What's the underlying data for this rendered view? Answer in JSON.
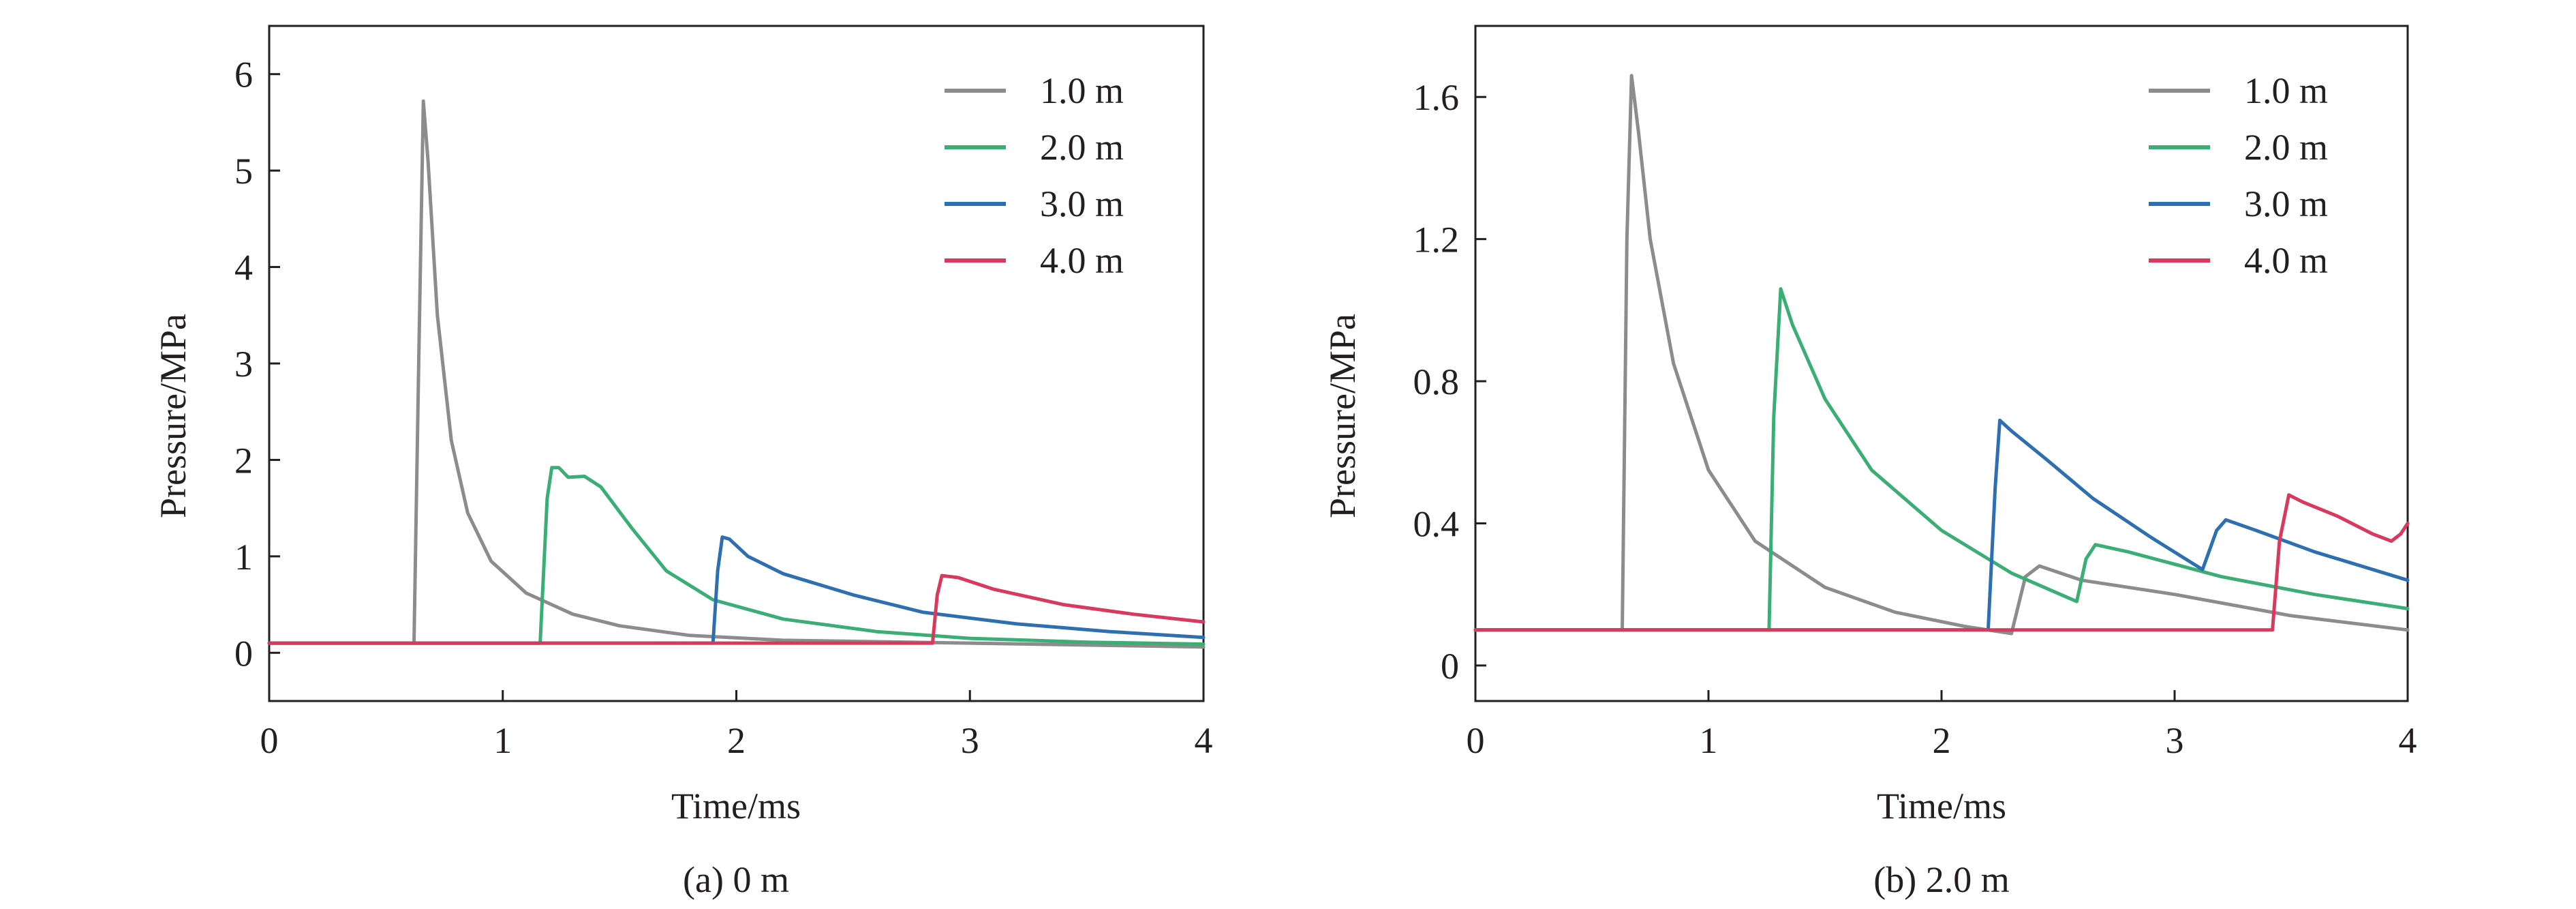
{
  "chart_data": [
    {
      "type": "line",
      "caption": "(a) 0 m",
      "xlabel": "Time/ms",
      "ylabel": "Pressure/MPa",
      "xlim": [
        0,
        4
      ],
      "ylim": [
        -0.5,
        6.5
      ],
      "xticks": [
        0,
        1,
        2,
        3,
        4
      ],
      "yticks": [
        0,
        1,
        2,
        3,
        4,
        5,
        6
      ],
      "ytick_labels": [
        "0",
        "1",
        "2",
        "3",
        "4",
        "5",
        "6"
      ],
      "legend_position": "top-right",
      "series": [
        {
          "name": "1.0 m",
          "color": "#8c8b8d",
          "points": [
            [
              0,
              0.1
            ],
            [
              0.62,
              0.1
            ],
            [
              0.64,
              3.0
            ],
            [
              0.66,
              5.72
            ],
            [
              0.68,
              5.1
            ],
            [
              0.72,
              3.5
            ],
            [
              0.78,
              2.2
            ],
            [
              0.85,
              1.45
            ],
            [
              0.95,
              0.95
            ],
            [
              1.1,
              0.62
            ],
            [
              1.3,
              0.4
            ],
            [
              1.5,
              0.28
            ],
            [
              1.8,
              0.18
            ],
            [
              2.2,
              0.13
            ],
            [
              3.0,
              0.1
            ],
            [
              4.0,
              0.06
            ]
          ]
        },
        {
          "name": "2.0 m",
          "color": "#3aae74",
          "points": [
            [
              0,
              0.1
            ],
            [
              1.16,
              0.1
            ],
            [
              1.19,
              1.6
            ],
            [
              1.21,
              1.92
            ],
            [
              1.24,
              1.92
            ],
            [
              1.28,
              1.82
            ],
            [
              1.35,
              1.83
            ],
            [
              1.42,
              1.72
            ],
            [
              1.55,
              1.3
            ],
            [
              1.7,
              0.85
            ],
            [
              1.9,
              0.55
            ],
            [
              2.2,
              0.35
            ],
            [
              2.6,
              0.22
            ],
            [
              3.0,
              0.15
            ],
            [
              3.5,
              0.11
            ],
            [
              4.0,
              0.09
            ]
          ]
        },
        {
          "name": "3.0 m",
          "color": "#2d6fb1",
          "points": [
            [
              0,
              0.1
            ],
            [
              1.9,
              0.1
            ],
            [
              1.92,
              0.85
            ],
            [
              1.94,
              1.2
            ],
            [
              1.97,
              1.18
            ],
            [
              2.05,
              1.0
            ],
            [
              2.2,
              0.82
            ],
            [
              2.5,
              0.6
            ],
            [
              2.8,
              0.42
            ],
            [
              3.2,
              0.3
            ],
            [
              3.6,
              0.22
            ],
            [
              4.0,
              0.16
            ]
          ]
        },
        {
          "name": "4.0 m",
          "color": "#d8395d",
          "points": [
            [
              0,
              0.1
            ],
            [
              2.84,
              0.1
            ],
            [
              2.86,
              0.6
            ],
            [
              2.88,
              0.8
            ],
            [
              2.95,
              0.78
            ],
            [
              3.1,
              0.66
            ],
            [
              3.4,
              0.5
            ],
            [
              3.7,
              0.4
            ],
            [
              4.0,
              0.32
            ]
          ]
        }
      ]
    },
    {
      "type": "line",
      "caption": "(b) 2.0 m",
      "xlabel": "Time/ms",
      "ylabel": "Pressure/MPa",
      "xlim": [
        0,
        4
      ],
      "ylim": [
        -0.1,
        1.8
      ],
      "xticks": [
        0,
        1,
        2,
        3,
        4
      ],
      "yticks": [
        0,
        0.4,
        0.8,
        1.2,
        1.6
      ],
      "ytick_labels": [
        "0",
        "0.4",
        "0.8",
        "1.2",
        "1.6"
      ],
      "legend_position": "top-right",
      "series": [
        {
          "name": "1.0 m",
          "color": "#8c8b8d",
          "points": [
            [
              0,
              0.1
            ],
            [
              0.63,
              0.1
            ],
            [
              0.65,
              1.2
            ],
            [
              0.67,
              1.66
            ],
            [
              0.7,
              1.5
            ],
            [
              0.75,
              1.2
            ],
            [
              0.85,
              0.85
            ],
            [
              1.0,
              0.55
            ],
            [
              1.2,
              0.35
            ],
            [
              1.5,
              0.22
            ],
            [
              1.8,
              0.15
            ],
            [
              2.1,
              0.11
            ],
            [
              2.3,
              0.09
            ],
            [
              2.36,
              0.25
            ],
            [
              2.42,
              0.28
            ],
            [
              2.6,
              0.24
            ],
            [
              3.0,
              0.2
            ],
            [
              3.5,
              0.14
            ],
            [
              4.0,
              0.1
            ]
          ]
        },
        {
          "name": "2.0 m",
          "color": "#3aae74",
          "points": [
            [
              0,
              0.1
            ],
            [
              1.26,
              0.1
            ],
            [
              1.28,
              0.7
            ],
            [
              1.31,
              1.06
            ],
            [
              1.36,
              0.96
            ],
            [
              1.5,
              0.75
            ],
            [
              1.7,
              0.55
            ],
            [
              2.0,
              0.38
            ],
            [
              2.3,
              0.26
            ],
            [
              2.58,
              0.18
            ],
            [
              2.62,
              0.3
            ],
            [
              2.66,
              0.34
            ],
            [
              2.8,
              0.32
            ],
            [
              3.2,
              0.25
            ],
            [
              3.6,
              0.2
            ],
            [
              4.0,
              0.16
            ]
          ]
        },
        {
          "name": "3.0 m",
          "color": "#2d6fb1",
          "points": [
            [
              0,
              0.1
            ],
            [
              2.2,
              0.1
            ],
            [
              2.23,
              0.5
            ],
            [
              2.25,
              0.69
            ],
            [
              2.3,
              0.66
            ],
            [
              2.45,
              0.58
            ],
            [
              2.65,
              0.47
            ],
            [
              2.9,
              0.36
            ],
            [
              3.12,
              0.27
            ],
            [
              3.18,
              0.38
            ],
            [
              3.22,
              0.41
            ],
            [
              3.35,
              0.38
            ],
            [
              3.6,
              0.32
            ],
            [
              4.0,
              0.24
            ]
          ]
        },
        {
          "name": "4.0 m",
          "color": "#d8395d",
          "points": [
            [
              0,
              0.1
            ],
            [
              3.42,
              0.1
            ],
            [
              3.45,
              0.35
            ],
            [
              3.49,
              0.48
            ],
            [
              3.55,
              0.46
            ],
            [
              3.7,
              0.42
            ],
            [
              3.85,
              0.37
            ],
            [
              3.93,
              0.35
            ],
            [
              3.97,
              0.37
            ],
            [
              4.0,
              0.4
            ]
          ]
        }
      ]
    }
  ]
}
